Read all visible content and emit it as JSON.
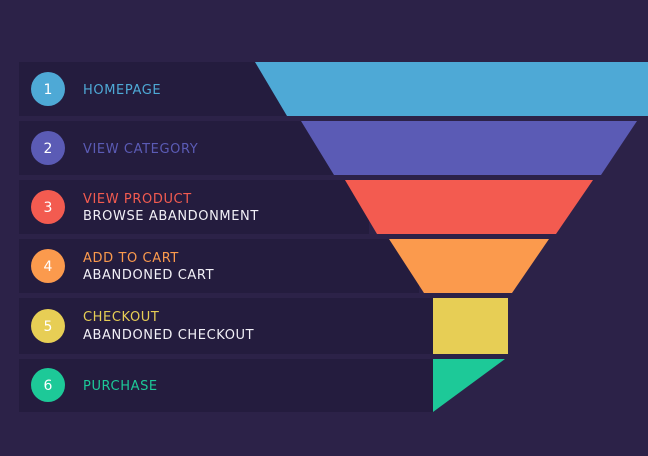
{
  "steps": [
    {
      "number": "1",
      "label": "HOMEPAGE",
      "sublabel": "",
      "color": "#4ea9d6"
    },
    {
      "number": "2",
      "label": "VIEW CATEGORY",
      "sublabel": "",
      "color": "#5b5bb5"
    },
    {
      "number": "3",
      "label": "VIEW PRODUCT",
      "sublabel": "BROWSE ABANDONMENT",
      "color": "#f35b50"
    },
    {
      "number": "4",
      "label": "ADD TO CART",
      "sublabel": "ABANDONED CART",
      "color": "#fb9a4d"
    },
    {
      "number": "5",
      "label": "CHECKOUT",
      "sublabel": "ABANDONED CHECKOUT",
      "color": "#e7ce55"
    },
    {
      "number": "6",
      "label": "PURCHASE",
      "sublabel": "",
      "color": "#1dc998"
    }
  ],
  "colors": {
    "background": "#2c2248",
    "row": "#241c3e"
  }
}
